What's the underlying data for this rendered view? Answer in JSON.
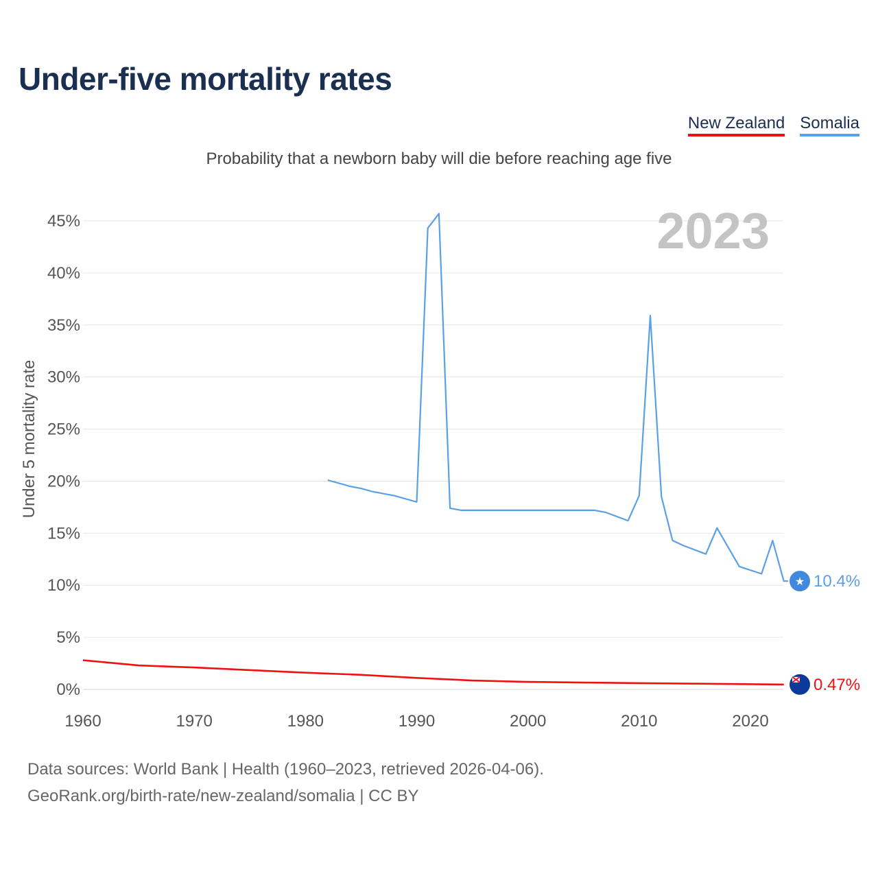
{
  "title": "Under-five mortality rates",
  "subtitle": "Probability that a newborn baby will die before reaching age five",
  "legend": [
    {
      "label": "New Zealand",
      "color": "#ee1111"
    },
    {
      "label": "Somalia",
      "color": "#5aa0e6"
    }
  ],
  "year_label": "2023",
  "footer": {
    "line1": "Data sources: World Bank | Health (1960–2023, retrieved 2026-04-06).",
    "line2": "GeoRank.org/birth-rate/new-zealand/somalia | CC BY"
  },
  "chart_data": {
    "type": "line",
    "title": "Under-five mortality rates",
    "ylabel": "Under 5 mortality rate",
    "xlabel": "",
    "xlim": [
      1960,
      2024
    ],
    "ylim": [
      0,
      45
    ],
    "x_ticks": [
      1960,
      1970,
      1980,
      1990,
      2000,
      2010,
      2020
    ],
    "y_ticks": [
      0,
      5,
      10,
      15,
      20,
      25,
      30,
      35,
      40,
      45
    ],
    "y_tick_labels": [
      "0%",
      "5%",
      "10%",
      "15%",
      "20%",
      "25%",
      "30%",
      "35%",
      "40%",
      "45%"
    ],
    "series": [
      {
        "name": "New Zealand",
        "color": "#ee1111",
        "end_label": "0.47%",
        "points": [
          [
            1960,
            2.8
          ],
          [
            1965,
            2.3
          ],
          [
            1970,
            2.1
          ],
          [
            1975,
            1.85
          ],
          [
            1980,
            1.6
          ],
          [
            1985,
            1.4
          ],
          [
            1990,
            1.1
          ],
          [
            1995,
            0.85
          ],
          [
            2000,
            0.72
          ],
          [
            2005,
            0.65
          ],
          [
            2010,
            0.6
          ],
          [
            2015,
            0.55
          ],
          [
            2020,
            0.5
          ],
          [
            2023,
            0.47
          ]
        ]
      },
      {
        "name": "Somalia",
        "color": "#5aa0e6",
        "end_label": "10.4%",
        "points": [
          [
            1982,
            20.1
          ],
          [
            1984,
            19.5
          ],
          [
            1985,
            19.3
          ],
          [
            1986,
            19.0
          ],
          [
            1988,
            18.6
          ],
          [
            1990,
            18.0
          ],
          [
            1991,
            44.3
          ],
          [
            1992,
            45.7
          ],
          [
            1993,
            17.4
          ],
          [
            1994,
            17.2
          ],
          [
            2000,
            17.2
          ],
          [
            2006,
            17.2
          ],
          [
            2007,
            17.0
          ],
          [
            2009,
            16.2
          ],
          [
            2010,
            18.6
          ],
          [
            2011,
            35.9
          ],
          [
            2012,
            18.5
          ],
          [
            2013,
            14.3
          ],
          [
            2014,
            13.8
          ],
          [
            2016,
            13.0
          ],
          [
            2017,
            15.5
          ],
          [
            2019,
            11.8
          ],
          [
            2021,
            11.1
          ],
          [
            2022,
            14.3
          ],
          [
            2023,
            10.4
          ],
          [
            2023.4,
            10.4
          ]
        ]
      }
    ]
  }
}
